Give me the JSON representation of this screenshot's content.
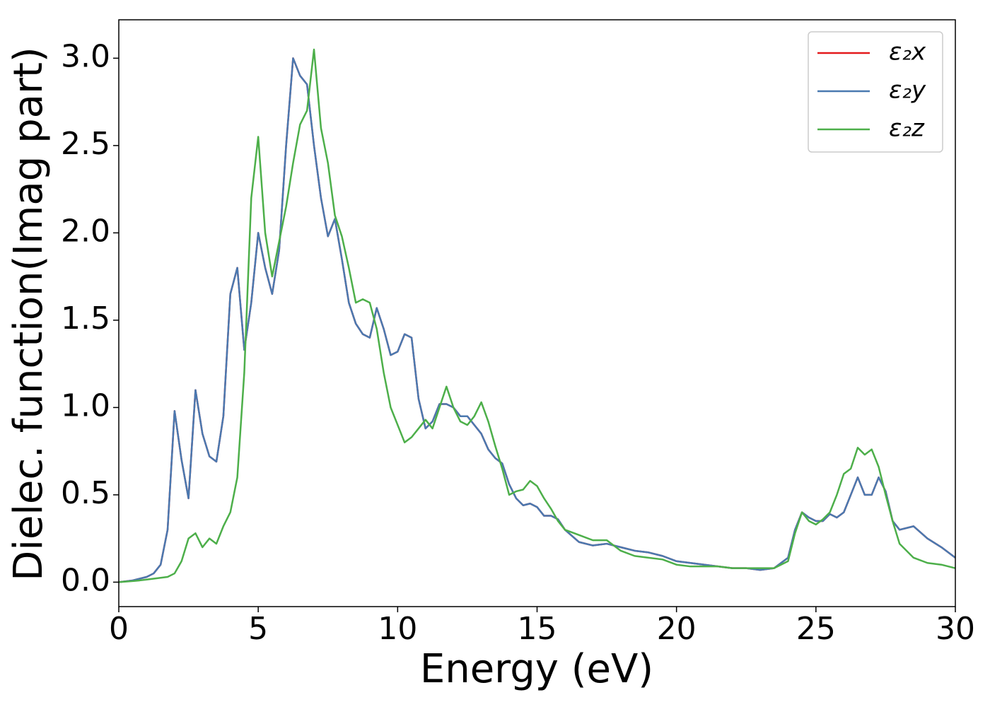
{
  "chart_data": {
    "type": "line",
    "xlabel": "Energy (eV)",
    "ylabel": "Dielec. function(Imag part)",
    "x": [
      0,
      0.25,
      0.5,
      0.75,
      1,
      1.25,
      1.5,
      1.75,
      2,
      2.25,
      2.5,
      2.75,
      3,
      3.25,
      3.5,
      3.75,
      4,
      4.25,
      4.5,
      4.75,
      5,
      5.25,
      5.5,
      5.75,
      6,
      6.25,
      6.5,
      6.75,
      7,
      7.25,
      7.5,
      7.75,
      8,
      8.25,
      8.5,
      8.75,
      9,
      9.25,
      9.5,
      9.75,
      10,
      10.25,
      10.5,
      10.75,
      11,
      11.25,
      11.5,
      11.75,
      12,
      12.25,
      12.5,
      12.75,
      13,
      13.25,
      13.5,
      13.75,
      14,
      14.25,
      14.5,
      14.75,
      15,
      15.25,
      15.5,
      15.75,
      16,
      16.5,
      17,
      17.5,
      18,
      18.5,
      19,
      19.5,
      20,
      20.5,
      21,
      21.5,
      22,
      22.5,
      23,
      23.5,
      24,
      24.25,
      24.5,
      24.75,
      25,
      25.25,
      25.5,
      25.75,
      26,
      26.25,
      26.5,
      26.75,
      27,
      27.25,
      27.5,
      27.75,
      28,
      28.5,
      29,
      29.5,
      30
    ],
    "series": [
      {
        "name": "ε₂x",
        "color": "#e41a1c",
        "values": [
          0,
          0.005,
          0.01,
          0.02,
          0.03,
          0.05,
          0.1,
          0.3,
          0.98,
          0.7,
          0.48,
          1.1,
          0.85,
          0.72,
          0.69,
          0.95,
          1.65,
          1.8,
          1.33,
          1.6,
          2.0,
          1.8,
          1.65,
          1.9,
          2.5,
          3.0,
          2.9,
          2.85,
          2.5,
          2.2,
          1.98,
          2.08,
          1.85,
          1.6,
          1.48,
          1.42,
          1.4,
          1.57,
          1.45,
          1.3,
          1.32,
          1.42,
          1.4,
          1.05,
          0.88,
          0.92,
          1.02,
          1.02,
          1.0,
          0.95,
          0.95,
          0.9,
          0.85,
          0.76,
          0.71,
          0.68,
          0.56,
          0.48,
          0.44,
          0.45,
          0.43,
          0.38,
          0.38,
          0.36,
          0.3,
          0.23,
          0.21,
          0.22,
          0.2,
          0.18,
          0.17,
          0.15,
          0.12,
          0.11,
          0.1,
          0.09,
          0.08,
          0.08,
          0.07,
          0.08,
          0.14,
          0.3,
          0.4,
          0.37,
          0.35,
          0.35,
          0.39,
          0.37,
          0.4,
          0.5,
          0.6,
          0.5,
          0.5,
          0.6,
          0.52,
          0.35,
          0.3,
          0.32,
          0.25,
          0.2,
          0.14
        ]
      },
      {
        "name": "ε₂y",
        "color": "#4a79b0",
        "values": [
          0,
          0.005,
          0.01,
          0.02,
          0.03,
          0.05,
          0.1,
          0.3,
          0.98,
          0.7,
          0.48,
          1.1,
          0.85,
          0.72,
          0.69,
          0.95,
          1.65,
          1.8,
          1.33,
          1.6,
          2.0,
          1.8,
          1.65,
          1.9,
          2.5,
          3.0,
          2.9,
          2.85,
          2.5,
          2.2,
          1.98,
          2.08,
          1.85,
          1.6,
          1.48,
          1.42,
          1.4,
          1.57,
          1.45,
          1.3,
          1.32,
          1.42,
          1.4,
          1.05,
          0.88,
          0.92,
          1.02,
          1.02,
          1.0,
          0.95,
          0.95,
          0.9,
          0.85,
          0.76,
          0.71,
          0.68,
          0.56,
          0.48,
          0.44,
          0.45,
          0.43,
          0.38,
          0.38,
          0.36,
          0.3,
          0.23,
          0.21,
          0.22,
          0.2,
          0.18,
          0.17,
          0.15,
          0.12,
          0.11,
          0.1,
          0.09,
          0.08,
          0.08,
          0.07,
          0.08,
          0.14,
          0.3,
          0.4,
          0.37,
          0.35,
          0.35,
          0.39,
          0.37,
          0.4,
          0.5,
          0.6,
          0.5,
          0.5,
          0.6,
          0.52,
          0.35,
          0.3,
          0.32,
          0.25,
          0.2,
          0.14
        ]
      },
      {
        "name": "ε₂z",
        "color": "#4daf4a",
        "values": [
          0,
          0.003,
          0.006,
          0.01,
          0.015,
          0.02,
          0.025,
          0.03,
          0.05,
          0.12,
          0.25,
          0.28,
          0.2,
          0.25,
          0.22,
          0.32,
          0.4,
          0.6,
          1.2,
          2.2,
          2.55,
          2.0,
          1.75,
          1.95,
          2.15,
          2.4,
          2.62,
          2.7,
          3.05,
          2.6,
          2.4,
          2.1,
          1.98,
          1.8,
          1.6,
          1.62,
          1.6,
          1.45,
          1.2,
          1.0,
          0.9,
          0.8,
          0.83,
          0.88,
          0.93,
          0.88,
          1.0,
          1.12,
          1.0,
          0.92,
          0.9,
          0.95,
          1.03,
          0.92,
          0.78,
          0.65,
          0.5,
          0.52,
          0.53,
          0.58,
          0.55,
          0.48,
          0.42,
          0.35,
          0.3,
          0.27,
          0.24,
          0.24,
          0.18,
          0.15,
          0.14,
          0.13,
          0.1,
          0.09,
          0.09,
          0.09,
          0.08,
          0.08,
          0.08,
          0.08,
          0.12,
          0.28,
          0.4,
          0.35,
          0.33,
          0.36,
          0.4,
          0.5,
          0.62,
          0.65,
          0.77,
          0.73,
          0.76,
          0.66,
          0.5,
          0.35,
          0.22,
          0.14,
          0.11,
          0.1,
          0.08
        ]
      }
    ],
    "xlim": [
      0,
      30
    ],
    "xticks": [
      0,
      5,
      10,
      15,
      20,
      25,
      30
    ],
    "ylim": [
      -0.14,
      3.22
    ],
    "yticks": [
      {
        "value": 0,
        "label": "0.0"
      },
      0.5,
      {
        "value": 1,
        "label": "1.0"
      },
      1.5,
      {
        "value": 2,
        "label": "2.0"
      },
      2.5,
      {
        "value": 3,
        "label": "3.0"
      }
    ],
    "legend": "upper right"
  }
}
